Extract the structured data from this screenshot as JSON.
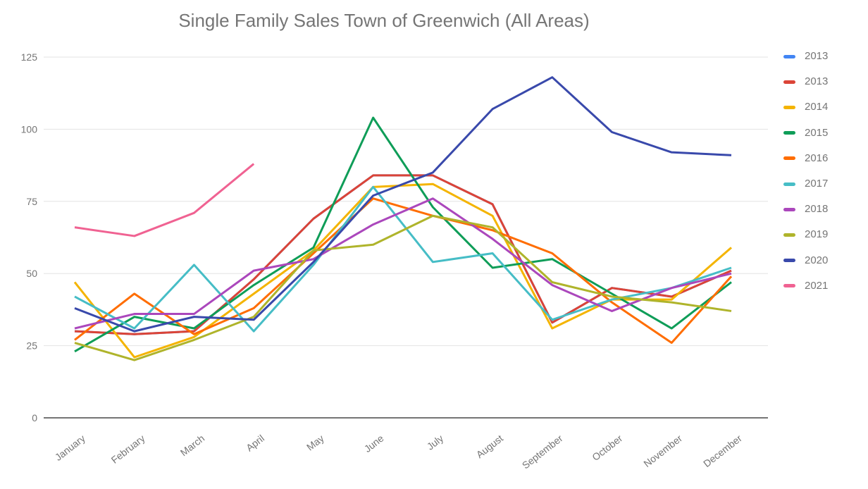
{
  "title": "Single Family Sales Town of Greenwich (All Areas)",
  "chart_data": {
    "type": "line",
    "categories": [
      "January",
      "February",
      "March",
      "April",
      "May",
      "June",
      "July",
      "August",
      "September",
      "October",
      "November",
      "December"
    ],
    "series": [
      {
        "name": "2013",
        "color": "#4285F4",
        "values": [
          30,
          29,
          30,
          48,
          69,
          84,
          84,
          74,
          33,
          45,
          42,
          51
        ]
      },
      {
        "name": "2013",
        "color": "#DB4437",
        "values": [
          30,
          29,
          30,
          48,
          69,
          84,
          84,
          74,
          33,
          45,
          42,
          51
        ]
      },
      {
        "name": "2014",
        "color": "#F4B400",
        "values": [
          47,
          21,
          28,
          43,
          58,
          80,
          81,
          70,
          31,
          41,
          41,
          59
        ]
      },
      {
        "name": "2015",
        "color": "#0F9D58",
        "values": [
          23,
          35,
          31,
          46,
          59,
          104,
          73,
          52,
          55,
          43,
          31,
          47
        ]
      },
      {
        "name": "2016",
        "color": "#FF6D01",
        "values": [
          27,
          43,
          29,
          38,
          57,
          76,
          70,
          65,
          57,
          40,
          26,
          49
        ]
      },
      {
        "name": "2017",
        "color": "#46BDC6",
        "values": [
          42,
          31,
          53,
          30,
          53,
          80,
          54,
          57,
          34,
          41,
          45,
          52
        ]
      },
      {
        "name": "2018",
        "color": "#AB47BC",
        "values": [
          31,
          36,
          36,
          51,
          55,
          67,
          76,
          62,
          46,
          37,
          45,
          50
        ]
      },
      {
        "name": "2019",
        "color": "#AFB42B",
        "values": [
          26,
          20,
          27,
          35,
          58,
          60,
          70,
          66,
          47,
          42,
          40,
          37
        ]
      },
      {
        "name": "2020",
        "color": "#3949AB",
        "values": [
          38,
          30,
          35,
          34,
          54,
          77,
          85,
          107,
          118,
          99,
          92,
          91
        ]
      },
      {
        "name": "2021",
        "color": "#F06292",
        "values": [
          66,
          63,
          71,
          88,
          null,
          null,
          null,
          null,
          null,
          null,
          null,
          null
        ]
      }
    ],
    "y_ticks": [
      "0",
      "25",
      "50",
      "75",
      "100",
      "125"
    ],
    "ylim": [
      0,
      125
    ],
    "xlabel": "",
    "ylabel": "",
    "grid": true,
    "legend_position": "right",
    "colors": {
      "title_text": "#757575",
      "axis_text": "#757575",
      "gridline": "#e3e3e3",
      "baseline": "#757575",
      "background": "#ffffff"
    }
  }
}
